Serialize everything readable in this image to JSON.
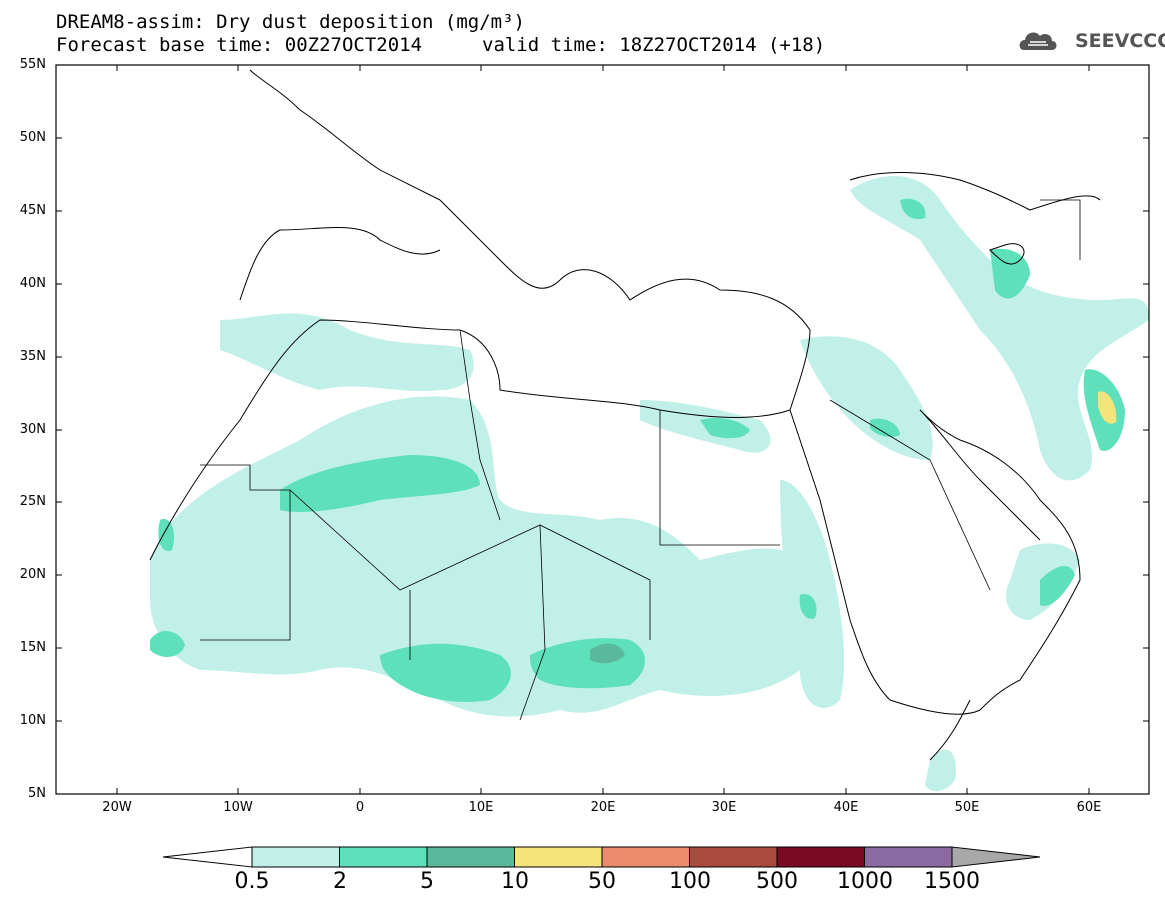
{
  "title": {
    "line1": "DREAM8-assim: Dry dust deposition (mg/m³)",
    "line2": "Forecast base time: 00Z27OCT2014",
    "valid": "valid time: 18Z27OCT2014 (+18)"
  },
  "logo": {
    "text": "SEEVCCC",
    "icon": "cloud-logo-icon"
  },
  "axes": {
    "lat_labels": [
      "55N",
      "50N",
      "45N",
      "40N",
      "35N",
      "30N",
      "25N",
      "20N",
      "15N",
      "10N",
      "5N"
    ],
    "lon_labels": [
      "20W",
      "10W",
      "0",
      "10E",
      "20E",
      "30E",
      "40E",
      "50E",
      "60E"
    ],
    "lat_range": [
      5,
      55
    ],
    "lon_range": [
      -25,
      65
    ]
  },
  "legend": {
    "levels": [
      "0.5",
      "2",
      "5",
      "10",
      "50",
      "100",
      "500",
      "1000",
      "1500"
    ],
    "colors": [
      "#c1f0e8",
      "#5ee0bb",
      "#5ab99a",
      "#f4e57a",
      "#ea8c6b",
      "#a84a3e",
      "#7a0a24",
      "#8a6aa0",
      "#a8a8a8"
    ]
  }
}
